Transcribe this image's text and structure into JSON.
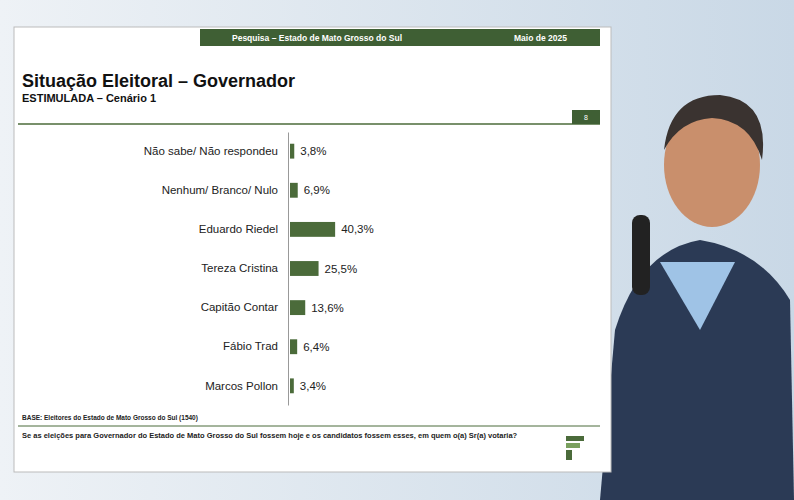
{
  "page": {
    "header": "Pesquisa – Estado de Mato Grosso do Sul",
    "date": "Maio de 2025",
    "page_number": "8",
    "base": "BASE: Eleitores do Estado de Mato Grosso do Sul (1540)",
    "question": "Se as eleições para Governador do Estado de Mato Grosso do Sul fossem hoje e os candidatos fossem esses, em quem o(a) Sr(a) votaria?"
  },
  "chart_data": {
    "type": "bar",
    "orientation": "horizontal",
    "title": "Situação Eleitoral – Governador",
    "subtitle": "ESTIMULADA – Cenário 1",
    "categories": [
      "Não sabe/ Não respondeu",
      "Nenhum/ Branco/ Nulo",
      "Eduardo Riedel",
      "Tereza Cristina",
      "Capitão Contar",
      "Fábio Trad",
      "Marcos Pollon"
    ],
    "values": [
      3.8,
      6.9,
      40.3,
      25.5,
      13.6,
      6.4,
      3.4
    ],
    "value_labels": [
      "3,8%",
      "6,9%",
      "40,3%",
      "25,5%",
      "13,6%",
      "6,4%",
      "3,4%"
    ],
    "color": "#4b6b3a",
    "xlim": [
      0,
      100
    ],
    "data_labels": true,
    "tick_labels": "y"
  }
}
